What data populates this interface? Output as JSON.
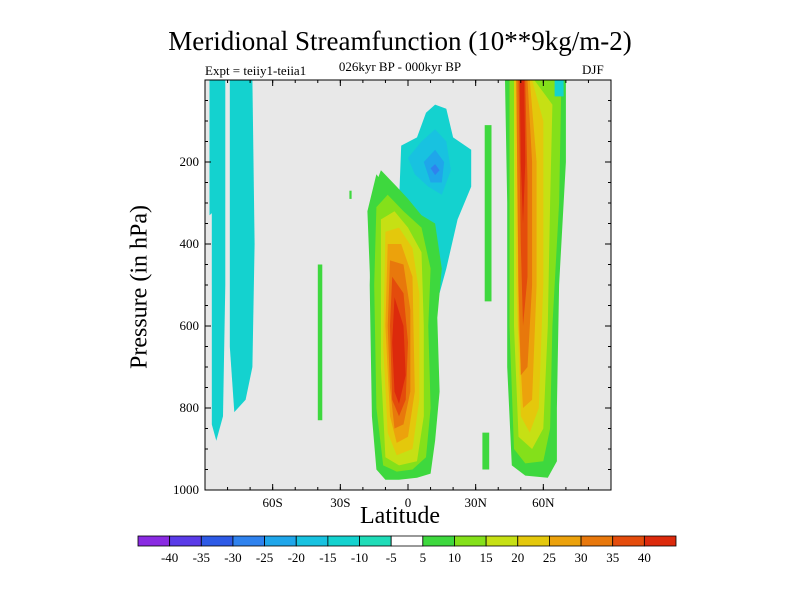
{
  "chart_data": {
    "type": "contour",
    "title": "Meridional Streamfunction (10**9kg/m-2)",
    "subtitle_left": "Expt = teiiy1-teiia1",
    "subtitle_center": "026kyr BP - 000kyr BP",
    "subtitle_right": "DJF",
    "xlabel": "Latitude",
    "ylabel": "Pressure (in hPa)",
    "xlim": [
      -90,
      90
    ],
    "ylim": [
      1000,
      0
    ],
    "x_ticks": [
      {
        "value": -60,
        "label": "60S"
      },
      {
        "value": -30,
        "label": "30S"
      },
      {
        "value": 0,
        "label": "0"
      },
      {
        "value": 30,
        "label": "30N"
      },
      {
        "value": 60,
        "label": "60N"
      }
    ],
    "y_ticks": [
      {
        "value": 200,
        "label": "200"
      },
      {
        "value": 400,
        "label": "400"
      },
      {
        "value": 600,
        "label": "600"
      },
      {
        "value": 800,
        "label": "800"
      },
      {
        "value": 1000,
        "label": "1000"
      }
    ],
    "background_color": "#e8e8e8",
    "colorbar": {
      "labels": [
        "-40",
        "-35",
        "-30",
        "-25",
        "-20",
        "-15",
        "-10",
        "-5",
        "5",
        "10",
        "15",
        "20",
        "25",
        "30",
        "35",
        "40"
      ],
      "colors": [
        "#8a2be2",
        "#5a3be8",
        "#2d5ae6",
        "#2f82ee",
        "#1fa6ea",
        "#18c2e0",
        "#14d2cf",
        "#1fdcb8",
        "#ffffff",
        "#3ed83e",
        "#84e01a",
        "#c6e014",
        "#e4c80c",
        "#eca20c",
        "#e8780c",
        "#e44c0c",
        "#dc2a0c"
      ]
    },
    "regions": [
      {
        "name": "tropical-positive-cell",
        "lat_range": [
          -15,
          15
        ],
        "p_range": [
          230,
          980
        ],
        "peak_value": 40,
        "peak_lat": -2,
        "peak_p": 700
      },
      {
        "name": "southern-hemisphere-negative",
        "lat_range": [
          -90,
          -65
        ],
        "p_range": [
          0,
          870
        ],
        "peak_value": -10
      },
      {
        "name": "upper-tropical-negative",
        "lat_range": [
          -5,
          25
        ],
        "p_range": [
          100,
          400
        ],
        "peak_value": -25,
        "peak_lat": 12,
        "peak_p": 220
      },
      {
        "name": "northern-midlatitude-positive",
        "lat_range": [
          45,
          68
        ],
        "p_range": [
          0,
          970
        ],
        "peak_value": 40,
        "peak_lat": 52,
        "peak_p": 500
      }
    ]
  }
}
